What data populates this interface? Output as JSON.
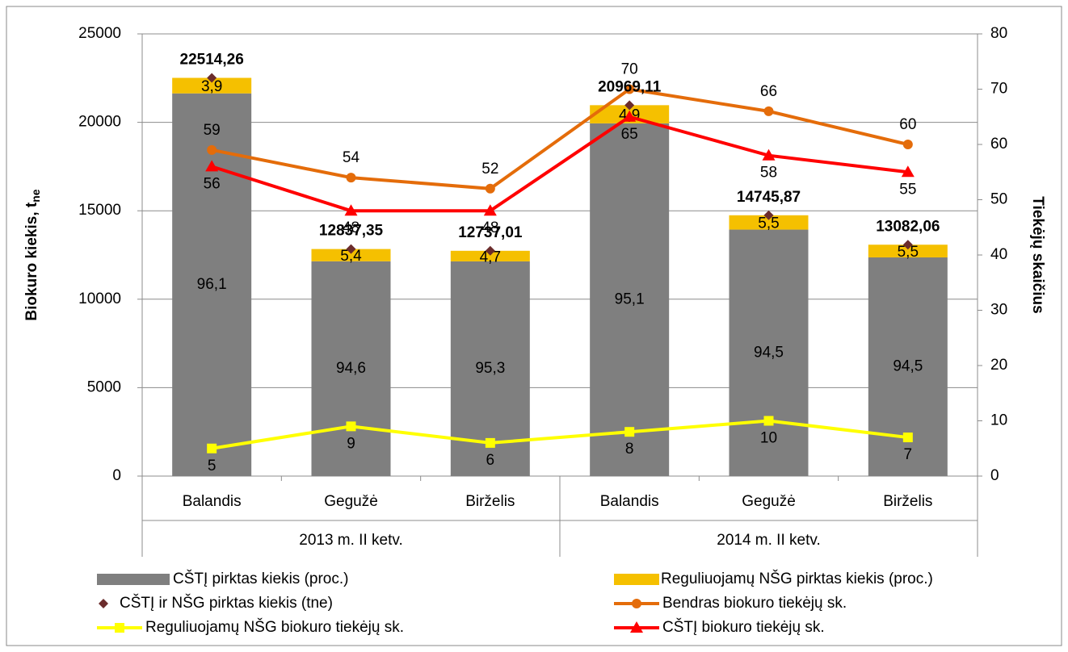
{
  "chart_data": {
    "type": "bar",
    "groups": [
      {
        "label": "2013 m. II ketv.",
        "categories": [
          "Balandis",
          "Gegužė",
          "Birželis"
        ]
      },
      {
        "label": "2014 m. II ketv.",
        "categories": [
          "Balandis",
          "Gegužė",
          "Birželis"
        ]
      }
    ],
    "ylabel": "Biokuro kiekis, t",
    "ylabel_sub": "ne",
    "y2label": "Tiekėjų skaičius",
    "ylim": [
      0,
      25000
    ],
    "yticks": [
      0,
      5000,
      10000,
      15000,
      20000,
      25000
    ],
    "y2lim": [
      0,
      80
    ],
    "y2ticks": [
      0,
      10,
      20,
      30,
      40,
      50,
      60,
      70,
      80
    ],
    "grid": true,
    "series": [
      {
        "name": "CŠTĮ pirktas kiekis (proc.)",
        "type": "bar",
        "color": "#7f7f7f",
        "values": [
          96.1,
          94.6,
          95.3,
          95.1,
          94.5,
          94.5
        ],
        "value_labels": [
          "96,1",
          "94,6",
          "95,3",
          "95,1",
          "94,5",
          "94,5"
        ]
      },
      {
        "name": "Reguliuojamų NŠG pirktas kiekis (proc.)",
        "type": "bar",
        "color": "#f5c000",
        "values": [
          3.9,
          5.4,
          4.7,
          4.9,
          5.5,
          5.5
        ],
        "value_labels": [
          "3,9",
          "5,4",
          "4,7",
          "4,9",
          "5,5",
          "5,5"
        ]
      },
      {
        "name": "CŠTĮ ir NŠG pirktas kiekis (tne)",
        "type": "scatter",
        "color": "#6b2c2c",
        "values": [
          22514.26,
          12837.35,
          12737.01,
          20969.11,
          14745.87,
          13082.06
        ],
        "value_labels": [
          "22514,26",
          "12837,35",
          "12737,01",
          "20969,11",
          "14745,87",
          "13082,06"
        ]
      },
      {
        "name": "Bendras biokuro tiekėjų sk.",
        "type": "line",
        "axis": "y2",
        "color": "#e46c0a",
        "marker": "circle",
        "values": [
          59,
          54,
          52,
          70,
          66,
          60
        ]
      },
      {
        "name": "Reguliuojamų NŠG biokuro tiekėjų sk.",
        "type": "line",
        "axis": "y2",
        "color": "#ffff00",
        "marker": "square",
        "values": [
          5,
          9,
          6,
          8,
          10,
          7
        ]
      },
      {
        "name": "CŠTĮ biokuro tiekėjų sk.",
        "type": "line",
        "axis": "y2",
        "color": "#ff0000",
        "marker": "triangle",
        "values": [
          56,
          48,
          48,
          65,
          58,
          55
        ]
      }
    ]
  }
}
